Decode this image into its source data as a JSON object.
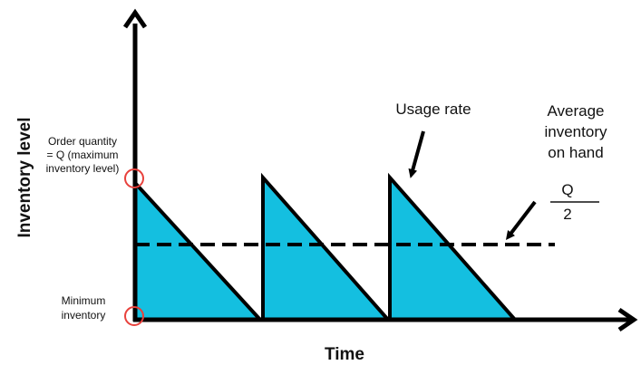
{
  "colors": {
    "fill": "#14bfe0",
    "line": "#000000",
    "marker": "#e8413c",
    "text": "#111111"
  },
  "labels": {
    "y_axis": "Inventory level",
    "x_axis": "Time",
    "order_quantity": [
      "Order quantity",
      "= Q (maximum",
      "inventory level)"
    ],
    "minimum": [
      "Minimum",
      "inventory"
    ],
    "usage_rate": "Usage rate",
    "average": [
      "Average",
      "inventory",
      "on hand"
    ],
    "fraction_top": "Q",
    "fraction_bottom": "2"
  }
}
